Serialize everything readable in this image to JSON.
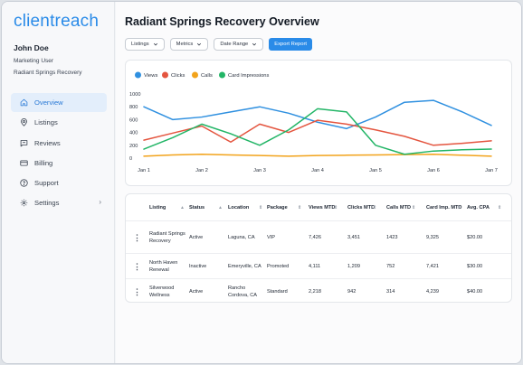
{
  "brand": {
    "name": "clientreach",
    "color": "#2a8be8"
  },
  "user": {
    "name": "John Doe",
    "role": "Marketing User",
    "organization": "Radiant Springs Recovery"
  },
  "nav": [
    {
      "label": "Overview",
      "icon": "home-icon",
      "active": true
    },
    {
      "label": "Listings",
      "icon": "map-pin-icon",
      "active": false
    },
    {
      "label": "Reviews",
      "icon": "message-icon",
      "active": false
    },
    {
      "label": "Billing",
      "icon": "credit-card-icon",
      "active": false
    },
    {
      "label": "Support",
      "icon": "help-circle-icon",
      "active": false
    },
    {
      "label": "Settings",
      "icon": "gear-icon",
      "active": false,
      "has_submenu": true
    }
  ],
  "page": {
    "title": "Radiant Springs Recovery Overview"
  },
  "toolbar": {
    "filters": [
      "Listings",
      "Metrics",
      "Date Range"
    ],
    "export_label": "Export Report"
  },
  "chart_data": {
    "type": "line",
    "categories": [
      "Jan 1",
      "Jan 2",
      "Jan 3",
      "Jan 4",
      "Jan 5",
      "Jan 6",
      "Jan 7"
    ],
    "x": [
      0,
      0.5,
      1,
      1.5,
      2,
      2.5,
      3,
      3.5,
      4,
      4.5,
      5,
      5.5,
      6
    ],
    "yticks": [
      0,
      200,
      400,
      600,
      800,
      1000
    ],
    "ylim": [
      0,
      1000
    ],
    "legend_position": "top-left",
    "grid": false,
    "series": [
      {
        "name": "Views",
        "color": "#2f90e0",
        "values": [
          800,
          600,
          640,
          720,
          800,
          700,
          560,
          460,
          640,
          870,
          900,
          720,
          510
        ]
      },
      {
        "name": "Clicks",
        "color": "#e4553f",
        "values": [
          280,
          390,
          500,
          250,
          530,
          400,
          590,
          530,
          440,
          340,
          200,
          230,
          270
        ]
      },
      {
        "name": "Calls",
        "color": "#f2a31b",
        "values": [
          30,
          50,
          60,
          50,
          40,
          30,
          40,
          45,
          50,
          55,
          60,
          45,
          30
        ]
      },
      {
        "name": "Card Impressions",
        "color": "#22b566",
        "values": [
          140,
          320,
          530,
          380,
          200,
          440,
          770,
          720,
          200,
          60,
          110,
          130,
          140
        ]
      }
    ]
  },
  "table": {
    "columns": [
      "Listing",
      "Status",
      "Location",
      "Package",
      "Views MTD",
      "Clicks MTD",
      "Calls MTD",
      "Card Imp. MTD",
      "Avg. CPA"
    ],
    "rows": [
      [
        "Radiant Springs Recovery",
        "Active",
        "Laguna, CA",
        "VIP",
        "7,426",
        "3,451",
        "1423",
        "9,325",
        "$20.00"
      ],
      [
        "North Haven Renewal",
        "Inactive",
        "Emeryville, CA",
        "Promoted",
        "4,111",
        "1,209",
        "752",
        "7,421",
        "$30.00"
      ],
      [
        "Silverwood Wellness",
        "Active",
        "Rancho Cordova, CA",
        "Standard",
        "2,218",
        "942",
        "314",
        "4,239",
        "$40.00"
      ]
    ]
  }
}
